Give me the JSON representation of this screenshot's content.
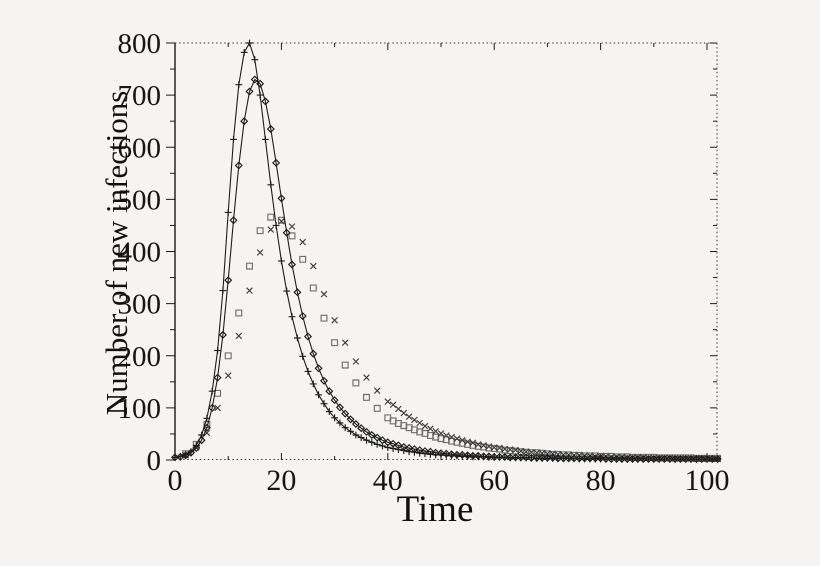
{
  "figure": {
    "kind": "epidemic-curves-plot"
  },
  "colors": {
    "background": "#f5f4f2",
    "ink": "#1a1a1a",
    "frame_dotted": "#3a3a3a",
    "square_marker": "#6f6f6f",
    "x_marker": "#3c3c3c"
  },
  "chart_data": {
    "type": "line",
    "title": "",
    "xlabel": "Time",
    "ylabel": "Number of new infections",
    "xlim": [
      0,
      102
    ],
    "ylim": [
      0,
      800
    ],
    "grid": false,
    "legend": "none",
    "axes": {
      "x": {
        "label": "Time",
        "major_ticks": [
          0,
          20,
          40,
          60,
          80,
          100
        ],
        "minor_ticks": [
          10,
          30,
          50,
          70,
          90
        ]
      },
      "y": {
        "label": "Number of new infections",
        "major_ticks": [
          0,
          100,
          200,
          300,
          400,
          500,
          600,
          700,
          800
        ],
        "minor_ticks": [
          50,
          150,
          250,
          350,
          450,
          550,
          650,
          750
        ]
      }
    },
    "series": [
      {
        "name": "plus-line",
        "marker": "plus",
        "line": true,
        "color": "#1c1c1c",
        "peak": {
          "t": 14,
          "value": 800
        },
        "segments": [
          {
            "t0": 0,
            "dt": 1,
            "values": [
              5,
              7,
              10,
              16,
              28,
              48,
              80,
              132,
              210,
              325,
              475,
              615,
              720,
              782,
              800,
              768,
              700,
              615,
              528,
              450,
              382,
              324,
              275,
              234,
              199,
              170,
              146,
              125,
              108,
              93,
              81,
              71,
              62,
              55,
              48,
              43,
              38,
              34,
              30,
              27,
              24,
              22,
              20,
              18,
              16,
              15,
              13,
              12,
              11,
              10,
              10,
              9,
              8,
              8,
              7,
              7,
              6,
              6,
              6,
              5,
              5,
              5,
              5,
              4,
              4,
              4,
              4,
              4,
              3,
              3,
              3,
              3,
              3,
              3,
              3,
              3,
              2,
              2,
              2,
              2,
              2,
              2,
              2,
              2,
              2,
              2,
              2,
              2,
              2,
              2,
              2,
              2,
              2,
              2,
              2,
              2,
              2,
              2,
              2,
              2,
              2,
              2,
              2
            ]
          }
        ]
      },
      {
        "name": "diamond-line",
        "marker": "diamond",
        "line": true,
        "color": "#1c1c1c",
        "peak": {
          "t": 15,
          "value": 730
        },
        "segments": [
          {
            "t0": 0,
            "dt": 1,
            "values": [
              5,
              6,
              9,
              14,
              23,
              38,
              62,
              100,
              158,
              240,
              345,
              460,
              565,
              650,
              707,
              730,
              722,
              688,
              635,
              570,
              502,
              436,
              375,
              322,
              276,
              237,
              204,
              176,
              152,
              132,
              115,
              101,
              89,
              78,
              69,
              61,
              54,
              48,
              43,
              38,
              34,
              31,
              28,
              25,
              23,
              21,
              19,
              17,
              16,
              14,
              13,
              12,
              11,
              10,
              10,
              9,
              8,
              8,
              7,
              7,
              6,
              6,
              6,
              5,
              5,
              5,
              5,
              4,
              4,
              4,
              4,
              4,
              3,
              3,
              3,
              3,
              3,
              3,
              3,
              3,
              3,
              2,
              2,
              2,
              2,
              2,
              2,
              2,
              2,
              2,
              2,
              2,
              2,
              2,
              2,
              2,
              2,
              2,
              2,
              2,
              2,
              2,
              2
            ]
          }
        ]
      },
      {
        "name": "square-scatter",
        "marker": "square",
        "line": false,
        "color": "#6f6f6f",
        "peak": {
          "t": 18,
          "value": 466
        },
        "segments": [
          {
            "t0": 2,
            "dt": 2,
            "values": [
              12,
              30,
              68,
              128,
              200,
              282,
              372,
              440,
              466,
              460,
              430,
              385,
              330,
              272,
              225,
              182,
              148,
              120,
              99,
              81
            ]
          },
          {
            "t0": 41,
            "dt": 1,
            "values": [
              75,
              70,
              66,
              62,
              58,
              54,
              51,
              47,
              44,
              41,
              39,
              36,
              34,
              32,
              30,
              28,
              26,
              25,
              23,
              22,
              21,
              19,
              18,
              17,
              16,
              15,
              14,
              14,
              13,
              12,
              11,
              11,
              10,
              10,
              9,
              9,
              8,
              8,
              8,
              7,
              7,
              7,
              6,
              6,
              6,
              5,
              5,
              5,
              5,
              5,
              4,
              4,
              4,
              4,
              4,
              4,
              4,
              3,
              3,
              3,
              3,
              3
            ]
          }
        ]
      },
      {
        "name": "x-scatter",
        "marker": "x",
        "line": false,
        "color": "#3c3c3c",
        "peak": {
          "t": 20,
          "value": 458
        },
        "segments": [
          {
            "t0": 2,
            "dt": 2,
            "values": [
              9,
              24,
              52,
              100,
              162,
              238,
              325,
              398,
              442,
              458,
              448,
              418,
              372,
              318,
              268,
              225,
              189,
              158,
              133,
              112
            ]
          },
          {
            "t0": 41,
            "dt": 1,
            "values": [
              106,
              98,
              90,
              83,
              77,
              71,
              65,
              60,
              55,
              51,
              47,
              44,
              41,
              38,
              35,
              33,
              30,
              28,
              26,
              24,
              23,
              21,
              20,
              19,
              17,
              16,
              15,
              14,
              13,
              12,
              12,
              11,
              10,
              10,
              9,
              9,
              8,
              8,
              7,
              7,
              7,
              6,
              6,
              6,
              5,
              5,
              5,
              5,
              4,
              4,
              4,
              4,
              4,
              3,
              3,
              3,
              3,
              3,
              3,
              3,
              2,
              2
            ]
          }
        ]
      }
    ]
  }
}
